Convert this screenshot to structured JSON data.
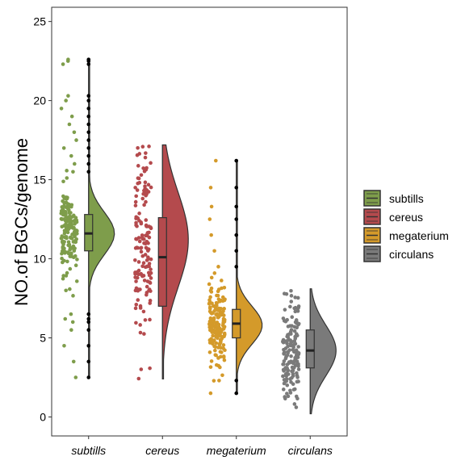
{
  "chart_data": {
    "type": "raincloud",
    "ylabel": "NO.of BGCs/genome",
    "xlabel": "",
    "ylim": [
      -1.2,
      25.9
    ],
    "yticks": [
      0,
      5,
      10,
      15,
      20,
      25
    ],
    "grid": false,
    "legend_position": "right",
    "categories": [
      "subtills",
      "cereus",
      "megaterium",
      "circulans"
    ],
    "series": [
      {
        "name": "subtills",
        "color": "#7E9D4B",
        "n_points": 160,
        "min": 2.5,
        "q1": 10.5,
        "median": 11.6,
        "q3": 12.8,
        "max": 22.6,
        "mode": 11.6,
        "spread": 1.35,
        "outliers": [
          2.5,
          3.5,
          4.5,
          5.5,
          6.0,
          6.2,
          6.5,
          15.5,
          16.0,
          16.5,
          17.0,
          17.5,
          18.0,
          18.5,
          19.0,
          19.5,
          20.0,
          20.3,
          22.3,
          22.5,
          22.6
        ]
      },
      {
        "name": "cereus",
        "color": "#B44A4D",
        "n_points": 150,
        "min": 2.4,
        "q1": 7.0,
        "median": 10.1,
        "q3": 12.6,
        "max": 17.2,
        "mode": 11.2,
        "spread": 3.0,
        "outliers": []
      },
      {
        "name": "megaterium",
        "color": "#D49A2A",
        "n_points": 170,
        "min": 1.5,
        "q1": 5.0,
        "median": 5.9,
        "q3": 6.8,
        "max": 16.2,
        "mode": 5.8,
        "spread": 1.2,
        "outliers": [
          1.5,
          2.3,
          9.5,
          10.5,
          11.5,
          12.5,
          13.3,
          14.5,
          16.2
        ]
      },
      {
        "name": "circulans",
        "color": "#7A7A7A",
        "n_points": 160,
        "min": 0.2,
        "q1": 3.1,
        "median": 4.2,
        "q3": 5.5,
        "max": 8.1,
        "mode": 4.2,
        "spread": 1.6,
        "outliers": []
      }
    ]
  }
}
